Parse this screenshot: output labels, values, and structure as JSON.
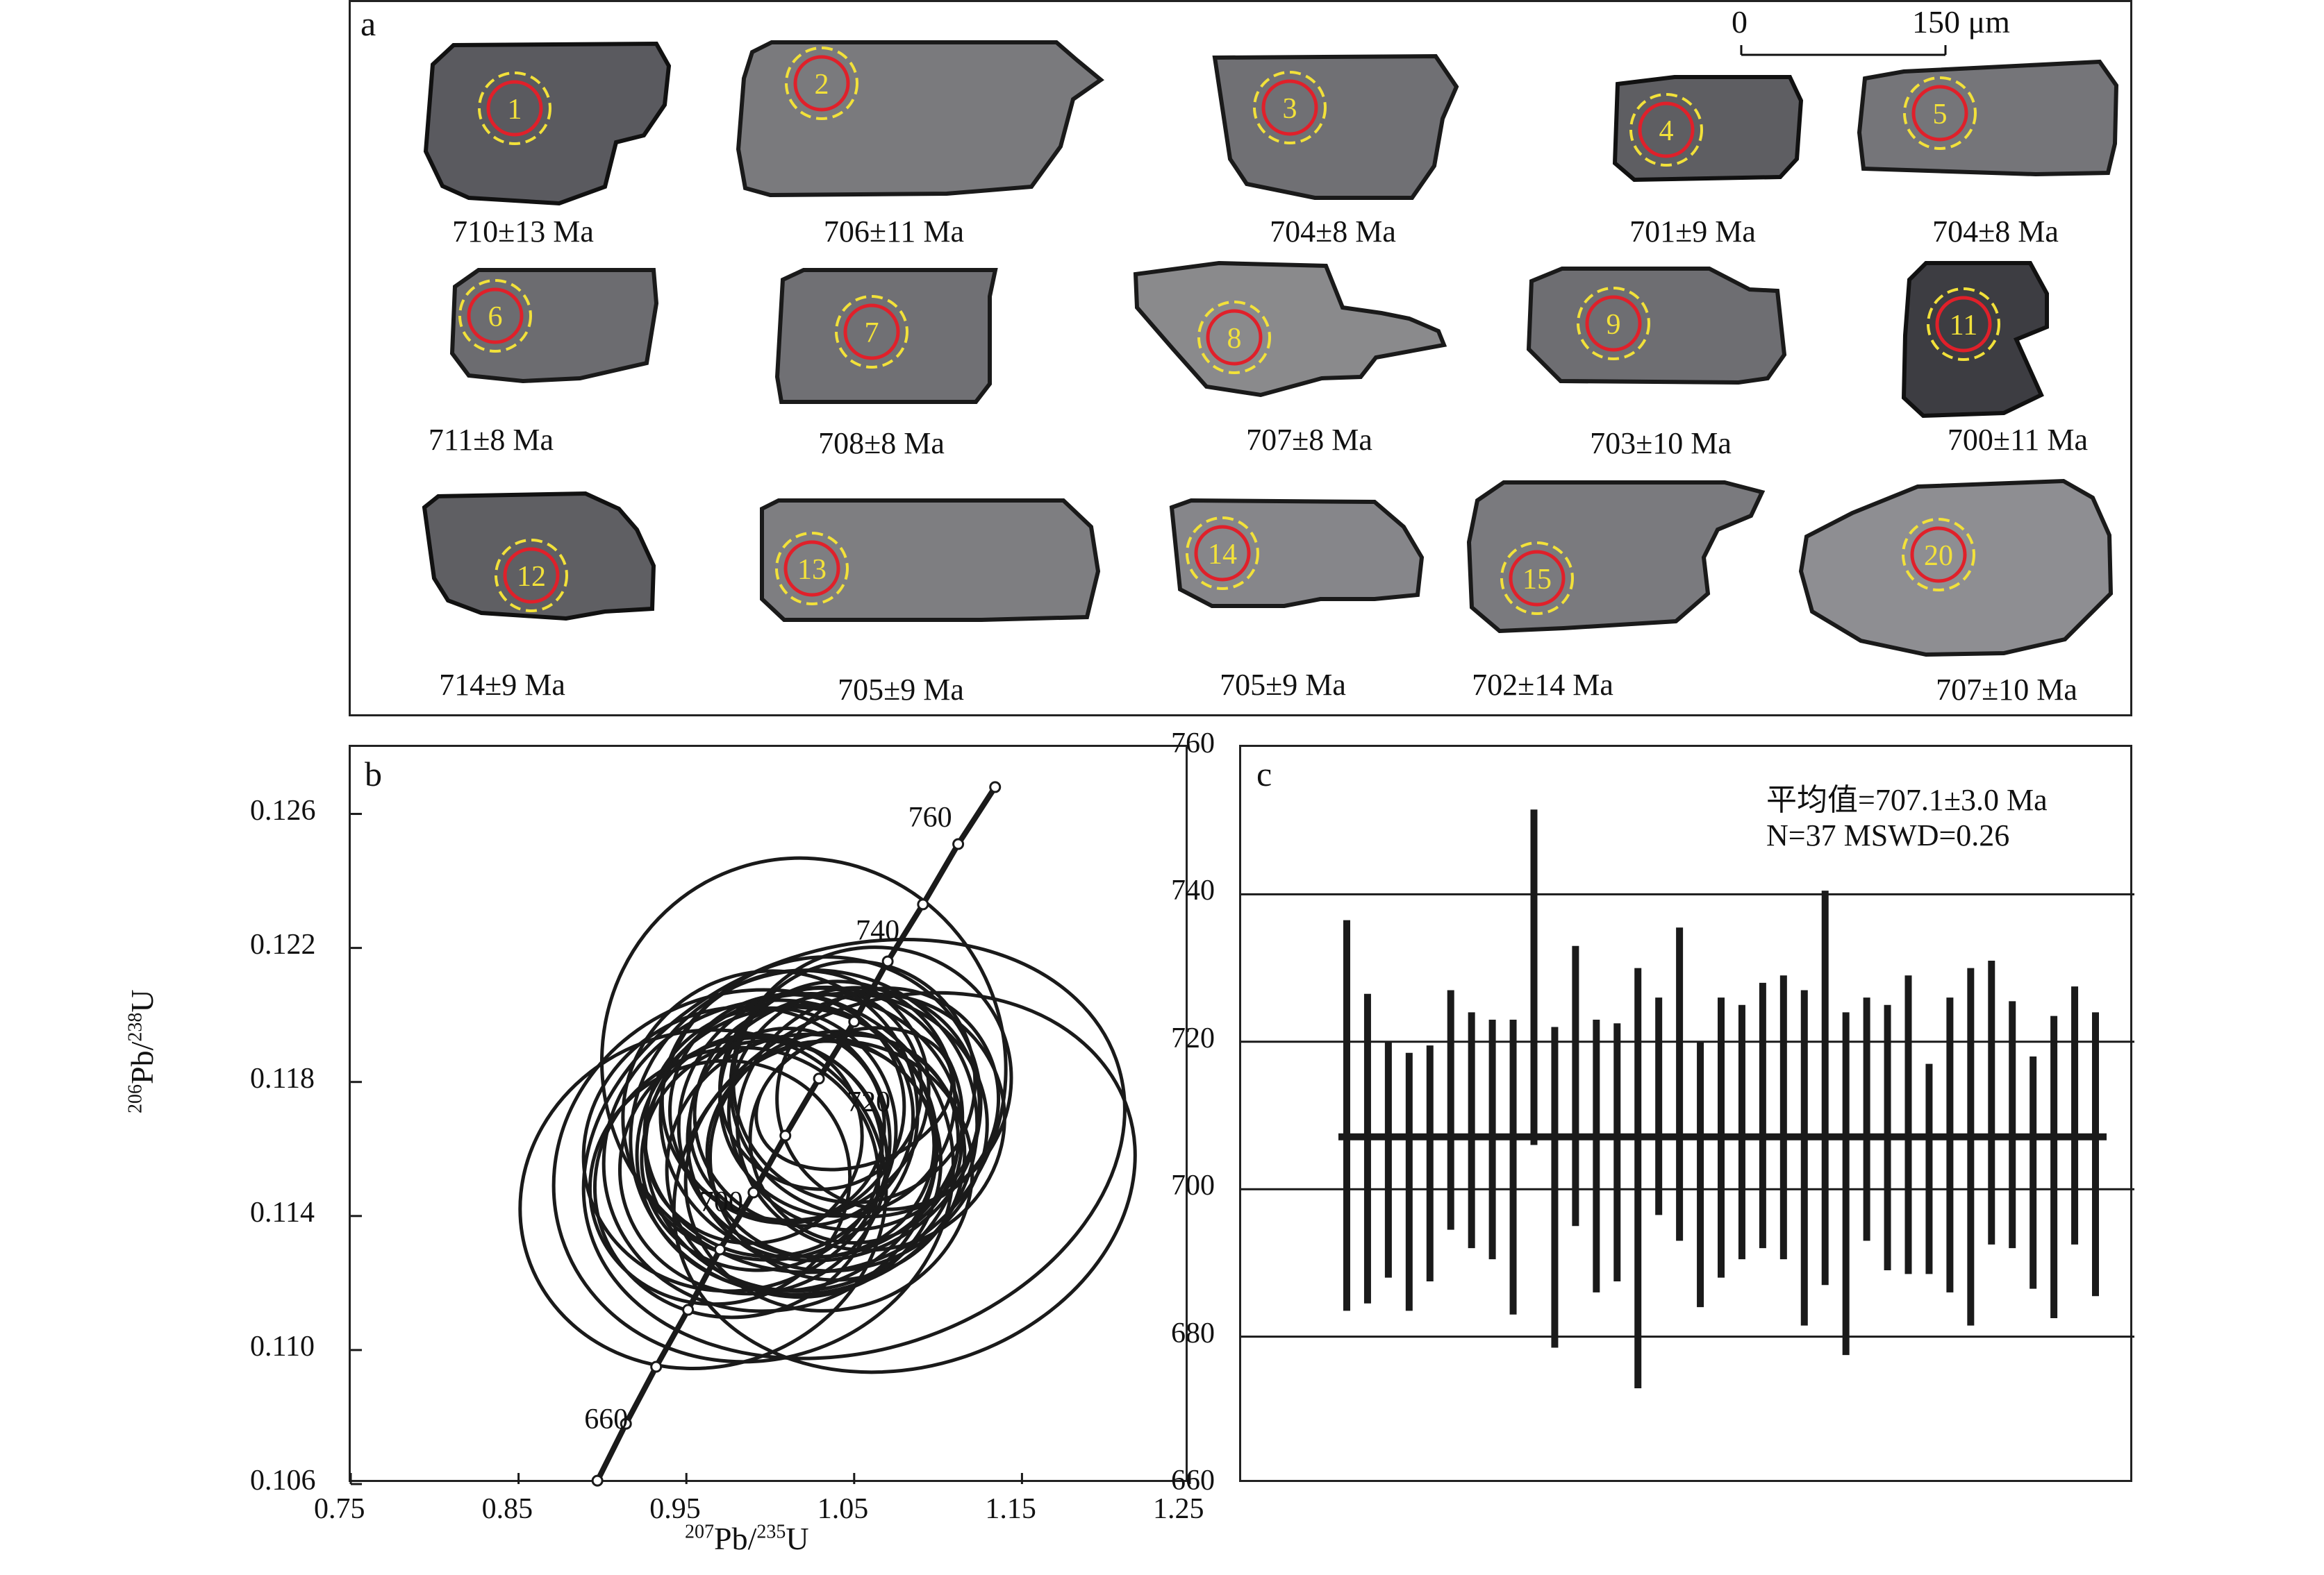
{
  "panel_a": {
    "letter": "a",
    "scale_bar": {
      "zero": "0",
      "length_label": "150 μm"
    },
    "grains": [
      {
        "spot": "1",
        "age": "710±13 Ma"
      },
      {
        "spot": "2",
        "age": "706±11 Ma"
      },
      {
        "spot": "3",
        "age": "704±8 Ma"
      },
      {
        "spot": "4",
        "age": "701±9 Ma"
      },
      {
        "spot": "5",
        "age": "704±8 Ma"
      },
      {
        "spot": "6",
        "age": "711±8 Ma"
      },
      {
        "spot": "7",
        "age": "708±8 Ma"
      },
      {
        "spot": "8",
        "age": "707±8 Ma"
      },
      {
        "spot": "9",
        "age": "703±10 Ma"
      },
      {
        "spot": "11",
        "age": "700±11 Ma"
      },
      {
        "spot": "12",
        "age": "714±9 Ma"
      },
      {
        "spot": "13",
        "age": "705±9 Ma"
      },
      {
        "spot": "14",
        "age": "705±9 Ma"
      },
      {
        "spot": "15",
        "age": "702±14 Ma"
      },
      {
        "spot": "20",
        "age": "707±10 Ma"
      }
    ],
    "colors": {
      "spot_circle": "#e0202a",
      "laser_circle": "#f2e13a",
      "spot_text": "#f2e13a"
    }
  },
  "chart_data": [
    {
      "type": "scatter",
      "panel_letter": "b",
      "xlabel_parts": {
        "sup1": "207",
        "base1": "Pb/",
        "sup2": "235",
        "base2": "U"
      },
      "ylabel_parts": {
        "sup1": "206",
        "base1": "Pb/",
        "sup2": "238",
        "base2": "U"
      },
      "xlim": [
        0.75,
        1.25
      ],
      "ylim": [
        0.106,
        0.128
      ],
      "x_ticks": [
        "0.75",
        "0.85",
        "0.95",
        "1.05",
        "1.15",
        "1.25"
      ],
      "y_ticks": [
        "0.106",
        "0.110",
        "0.114",
        "0.118",
        "0.122",
        "0.126"
      ],
      "concordia_age_labels": [
        "660",
        "700",
        "720",
        "740",
        "760"
      ],
      "concordia_points": [
        {
          "age": 650,
          "x": 0.897,
          "y": 0.1061
        },
        {
          "age": 660,
          "x": 0.914,
          "y": 0.1078
        },
        {
          "age": 670,
          "x": 0.932,
          "y": 0.1095
        },
        {
          "age": 680,
          "x": 0.951,
          "y": 0.1112
        },
        {
          "age": 690,
          "x": 0.97,
          "y": 0.113
        },
        {
          "age": 700,
          "x": 0.99,
          "y": 0.1147
        },
        {
          "age": 710,
          "x": 1.009,
          "y": 0.1164
        },
        {
          "age": 720,
          "x": 1.029,
          "y": 0.1181
        },
        {
          "age": 730,
          "x": 1.05,
          "y": 0.1198
        },
        {
          "age": 740,
          "x": 1.07,
          "y": 0.1216
        },
        {
          "age": 750,
          "x": 1.091,
          "y": 0.1233
        },
        {
          "age": 760,
          "x": 1.112,
          "y": 0.1251
        },
        {
          "age": 770,
          "x": 1.134,
          "y": 0.1268
        }
      ],
      "ellipses": [
        {
          "cx": 1.0,
          "cy": 0.1165,
          "rx": 0.075,
          "ry": 0.0037
        },
        {
          "cx": 1.02,
          "cy": 0.117,
          "rx": 0.065,
          "ry": 0.0033
        },
        {
          "cx": 1.03,
          "cy": 0.1168,
          "rx": 0.085,
          "ry": 0.004
        },
        {
          "cx": 1.01,
          "cy": 0.116,
          "rx": 0.09,
          "ry": 0.0042
        },
        {
          "cx": 1.04,
          "cy": 0.1175,
          "rx": 0.07,
          "ry": 0.0035
        },
        {
          "cx": 0.99,
          "cy": 0.1155,
          "rx": 0.08,
          "ry": 0.0038
        },
        {
          "cx": 1.05,
          "cy": 0.1172,
          "rx": 0.075,
          "ry": 0.0036
        },
        {
          "cx": 1.02,
          "cy": 0.1162,
          "rx": 0.095,
          "ry": 0.0044
        },
        {
          "cx": 0.98,
          "cy": 0.115,
          "rx": 0.085,
          "ry": 0.004
        },
        {
          "cx": 1.03,
          "cy": 0.1178,
          "rx": 0.06,
          "ry": 0.003
        },
        {
          "cx": 1.06,
          "cy": 0.1168,
          "rx": 0.08,
          "ry": 0.0038
        },
        {
          "cx": 1.0,
          "cy": 0.1158,
          "rx": 0.1,
          "ry": 0.0046
        },
        {
          "cx": 1.04,
          "cy": 0.1165,
          "rx": 0.09,
          "ry": 0.0041
        },
        {
          "cx": 1.01,
          "cy": 0.1172,
          "rx": 0.07,
          "ry": 0.0034
        },
        {
          "cx": 0.99,
          "cy": 0.1163,
          "rx": 0.065,
          "ry": 0.0031
        },
        {
          "cx": 1.05,
          "cy": 0.118,
          "rx": 0.072,
          "ry": 0.0036
        },
        {
          "cx": 1.02,
          "cy": 0.1155,
          "rx": 0.082,
          "ry": 0.0039
        },
        {
          "cx": 1.03,
          "cy": 0.116,
          "rx": 0.068,
          "ry": 0.0032
        },
        {
          "cx": 1.0,
          "cy": 0.117,
          "rx": 0.088,
          "ry": 0.0043
        },
        {
          "cx": 1.07,
          "cy": 0.1175,
          "rx": 0.066,
          "ry": 0.0033
        },
        {
          "cx": 0.97,
          "cy": 0.115,
          "rx": 0.078,
          "ry": 0.0036
        },
        {
          "cx": 1.04,
          "cy": 0.1158,
          "rx": 0.076,
          "ry": 0.0037
        },
        {
          "cx": 1.01,
          "cy": 0.1167,
          "rx": 0.058,
          "ry": 0.0029
        },
        {
          "cx": 1.06,
          "cy": 0.118,
          "rx": 0.084,
          "ry": 0.004
        },
        {
          "cx": 0.98,
          "cy": 0.116,
          "rx": 0.092,
          "ry": 0.0042
        },
        {
          "cx": 1.03,
          "cy": 0.1172,
          "rx": 0.096,
          "ry": 0.0045
        },
        {
          "cx": 1.02,
          "cy": 0.1165,
          "rx": 0.104,
          "ry": 0.0048
        },
        {
          "cx": 1.05,
          "cy": 0.1163,
          "rx": 0.062,
          "ry": 0.0031
        },
        {
          "cx": 0.995,
          "cy": 0.1158,
          "rx": 0.072,
          "ry": 0.0034
        },
        {
          "cx": 1.015,
          "cy": 0.1176,
          "rx": 0.08,
          "ry": 0.0037
        },
        {
          "cx": 1.035,
          "cy": 0.1152,
          "rx": 0.086,
          "ry": 0.004
        },
        {
          "cx": 0.99,
          "cy": 0.1152,
          "rx": 0.12,
          "ry": 0.0055
        },
        {
          "cx": 1.05,
          "cy": 0.116,
          "rx": 0.165,
          "ry": 0.006
        },
        {
          "cx": 1.08,
          "cy": 0.115,
          "rx": 0.14,
          "ry": 0.0055
        },
        {
          "cx": 1.02,
          "cy": 0.1185,
          "rx": 0.12,
          "ry": 0.0062
        },
        {
          "cx": 1.05,
          "cy": 0.1175,
          "rx": 0.06,
          "ry": 0.002
        },
        {
          "cx": 0.96,
          "cy": 0.1145,
          "rx": 0.11,
          "ry": 0.005
        }
      ]
    },
    {
      "type": "bar",
      "panel_letter": "c",
      "title_line1": "平均值=707.1±3.0 Ma",
      "title_line2": "N=37 MSWD=0.26",
      "ylim": [
        660,
        760
      ],
      "y_ticks": [
        "660",
        "680",
        "700",
        "720",
        "740",
        "760"
      ],
      "grid_lines": [
        680,
        700,
        720,
        740
      ],
      "mean": 707.1,
      "error_bars": [
        [
          683.5,
          736.5
        ],
        [
          684.5,
          726.5
        ],
        [
          688,
          720
        ],
        [
          683.5,
          718.5
        ],
        [
          687.5,
          719.5
        ],
        [
          694.5,
          727
        ],
        [
          692,
          724
        ],
        [
          690.5,
          723
        ],
        [
          683,
          723
        ],
        [
          706,
          751.5
        ],
        [
          678.5,
          722
        ],
        [
          695,
          733
        ],
        [
          686,
          723
        ],
        [
          687.5,
          722.5
        ],
        [
          673,
          730
        ],
        [
          696.5,
          726
        ],
        [
          693,
          735.5
        ],
        [
          684,
          720
        ],
        [
          688,
          726
        ],
        [
          690.5,
          725
        ],
        [
          692,
          728
        ],
        [
          690.5,
          729
        ],
        [
          681.5,
          727
        ],
        [
          687,
          740.5
        ],
        [
          677.5,
          724
        ],
        [
          693,
          726
        ],
        [
          689,
          725
        ],
        [
          688.5,
          729
        ],
        [
          688.5,
          717
        ],
        [
          686,
          726
        ],
        [
          681.5,
          730
        ],
        [
          692.5,
          731
        ],
        [
          692,
          725.5
        ],
        [
          686.5,
          718
        ],
        [
          682.5,
          723.5
        ],
        [
          692.5,
          727.5
        ],
        [
          685.5,
          724
        ]
      ]
    }
  ]
}
